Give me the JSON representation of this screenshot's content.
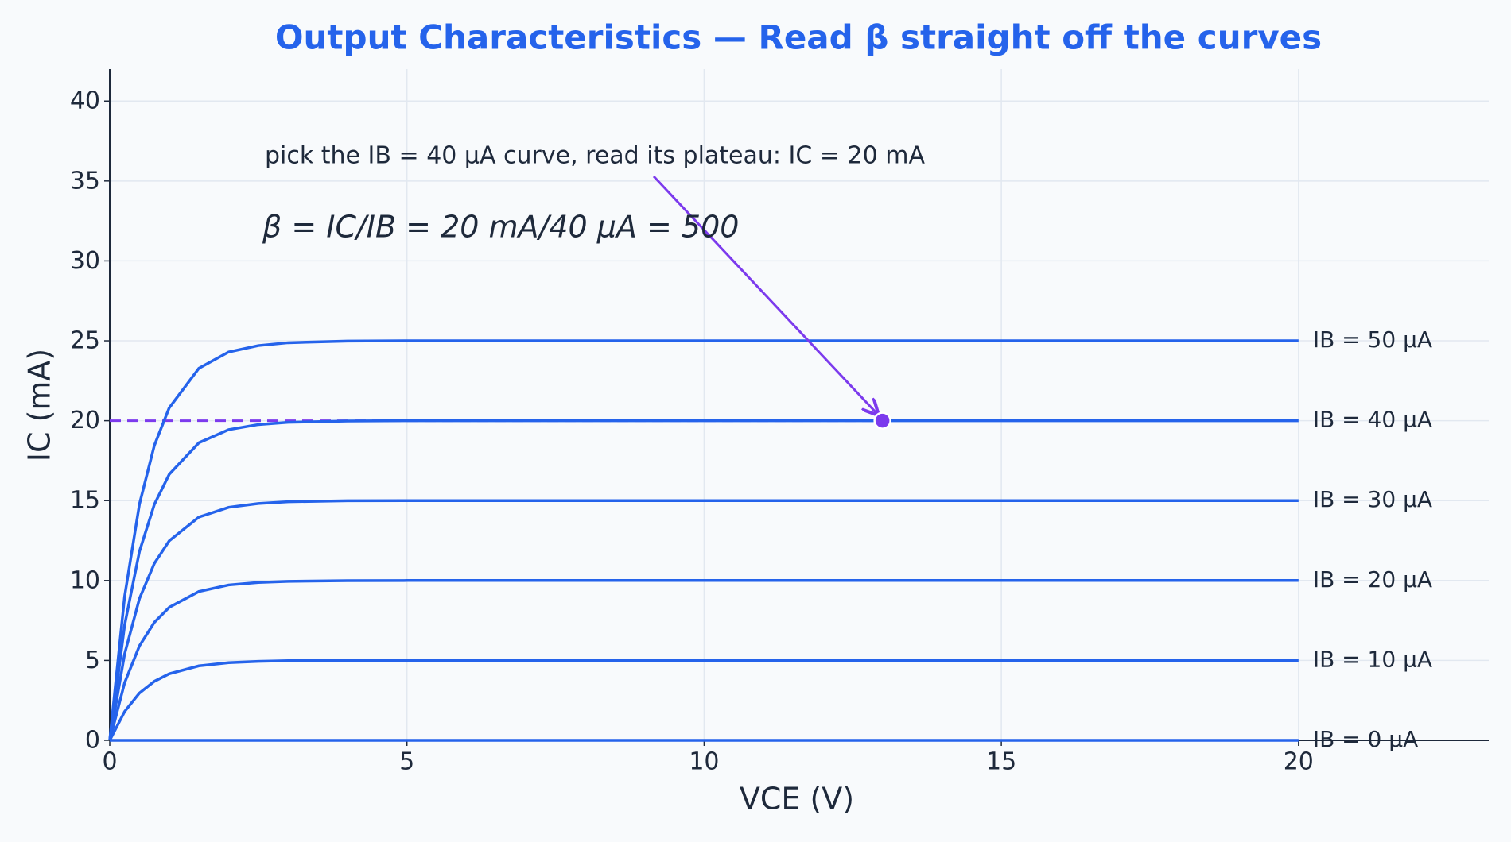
{
  "chart_data": {
    "type": "line",
    "title": "Output Characteristics — Read β straight off the curves",
    "xlabel": "VCE  (V)",
    "ylabel": "IC  (mA)",
    "x": [
      0,
      0.25,
      0.5,
      0.75,
      1,
      1.5,
      2,
      2.5,
      3,
      4,
      5,
      10,
      15,
      20
    ],
    "series": [
      {
        "name": "IB = 0 µA",
        "color": "#64748b",
        "values": [
          0,
          0,
          0,
          0,
          0,
          0,
          0,
          0,
          0,
          0,
          0,
          0,
          0,
          0
        ]
      },
      {
        "name": "IB = 10 µA",
        "color": "#2563eb",
        "values": [
          0,
          1.8,
          2.96,
          3.69,
          4.16,
          4.66,
          4.86,
          4.94,
          4.98,
          5,
          5,
          5,
          5,
          5
        ]
      },
      {
        "name": "IB = 20 µA",
        "color": "#2563eb",
        "values": [
          0,
          3.6,
          5.91,
          7.38,
          8.32,
          9.31,
          9.72,
          9.88,
          9.95,
          9.99,
          10,
          10,
          10,
          10
        ]
      },
      {
        "name": "IB = 30 µA",
        "color": "#2563eb",
        "values": [
          0,
          5.4,
          8.87,
          11.07,
          12.48,
          13.97,
          14.58,
          14.82,
          14.93,
          14.99,
          15,
          15,
          15,
          15
        ]
      },
      {
        "name": "IB = 40 µA",
        "color": "#2563eb",
        "values": [
          0,
          7.2,
          11.82,
          14.76,
          16.64,
          18.62,
          19.44,
          19.76,
          19.9,
          19.98,
          20,
          20,
          20,
          20
        ]
      },
      {
        "name": "IB = 50 µA",
        "color": "#2563eb",
        "values": [
          0,
          9,
          14.78,
          18.45,
          20.8,
          23.28,
          24.3,
          24.7,
          24.88,
          24.98,
          25,
          25,
          25,
          25
        ]
      }
    ],
    "xlim": [
      0,
      23.2
    ],
    "ylim": [
      0,
      42
    ],
    "xticks": [
      0,
      5,
      10,
      15,
      20
    ],
    "yticks": [
      0,
      5,
      10,
      15,
      20,
      25,
      30,
      35,
      40
    ],
    "grid": true,
    "annotation": {
      "text": "pick the IB = 40 µA curve,  read its plateau:  IC = 20 mA",
      "formula": "β = IC/IB = 20 mA/40 µA = 500",
      "point": [
        13,
        20
      ],
      "color": "#7c3aed"
    }
  }
}
